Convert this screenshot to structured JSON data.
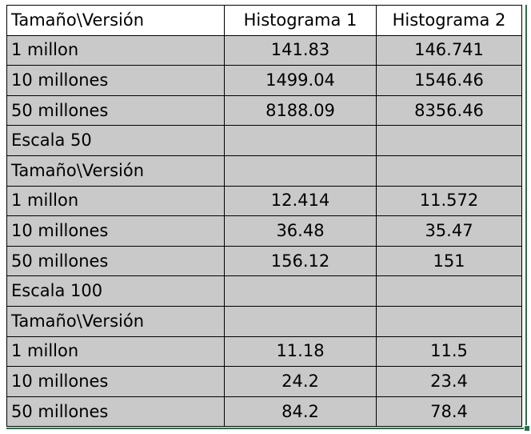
{
  "table": {
    "rows": [
      [
        "Tamaño\\Versión",
        "Histograma 1",
        "Histograma 2"
      ],
      [
        "1 millon",
        "141.83",
        "146.741"
      ],
      [
        "10 millones",
        "1499.04",
        "1546.46"
      ],
      [
        "50 millones",
        "8188.09",
        "8356.46"
      ],
      [
        "Escala 50",
        "",
        ""
      ],
      [
        "Tamaño\\Versión",
        "",
        ""
      ],
      [
        "1 millon",
        "12.414",
        "11.572"
      ],
      [
        "10 millones",
        "36.48",
        "35.47"
      ],
      [
        "50 millones",
        "156.12",
        "151"
      ],
      [
        "Escala 100",
        "",
        ""
      ],
      [
        "Tamaño\\Versión",
        "",
        ""
      ],
      [
        "1 millon",
        "11.18",
        "11.5"
      ],
      [
        "10 millones",
        "24.2",
        "23.4"
      ],
      [
        "50 millones",
        "84.2",
        "78.4"
      ]
    ]
  },
  "colors": {
    "cell_fill": "#c9c9c9",
    "header_fill": "#ffffff",
    "selection_border": "#217346"
  }
}
